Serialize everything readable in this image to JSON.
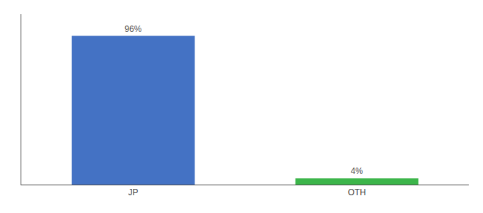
{
  "chart_data": {
    "type": "bar",
    "categories": [
      "JP",
      "OTH"
    ],
    "values": [
      96,
      4
    ],
    "value_labels": [
      "96%",
      "4%"
    ],
    "data_labels": true,
    "colors": [
      "#4472c4",
      "#3cb54a"
    ],
    "ylim": [
      0,
      110
    ],
    "tick_labels": "x",
    "grid": false
  }
}
